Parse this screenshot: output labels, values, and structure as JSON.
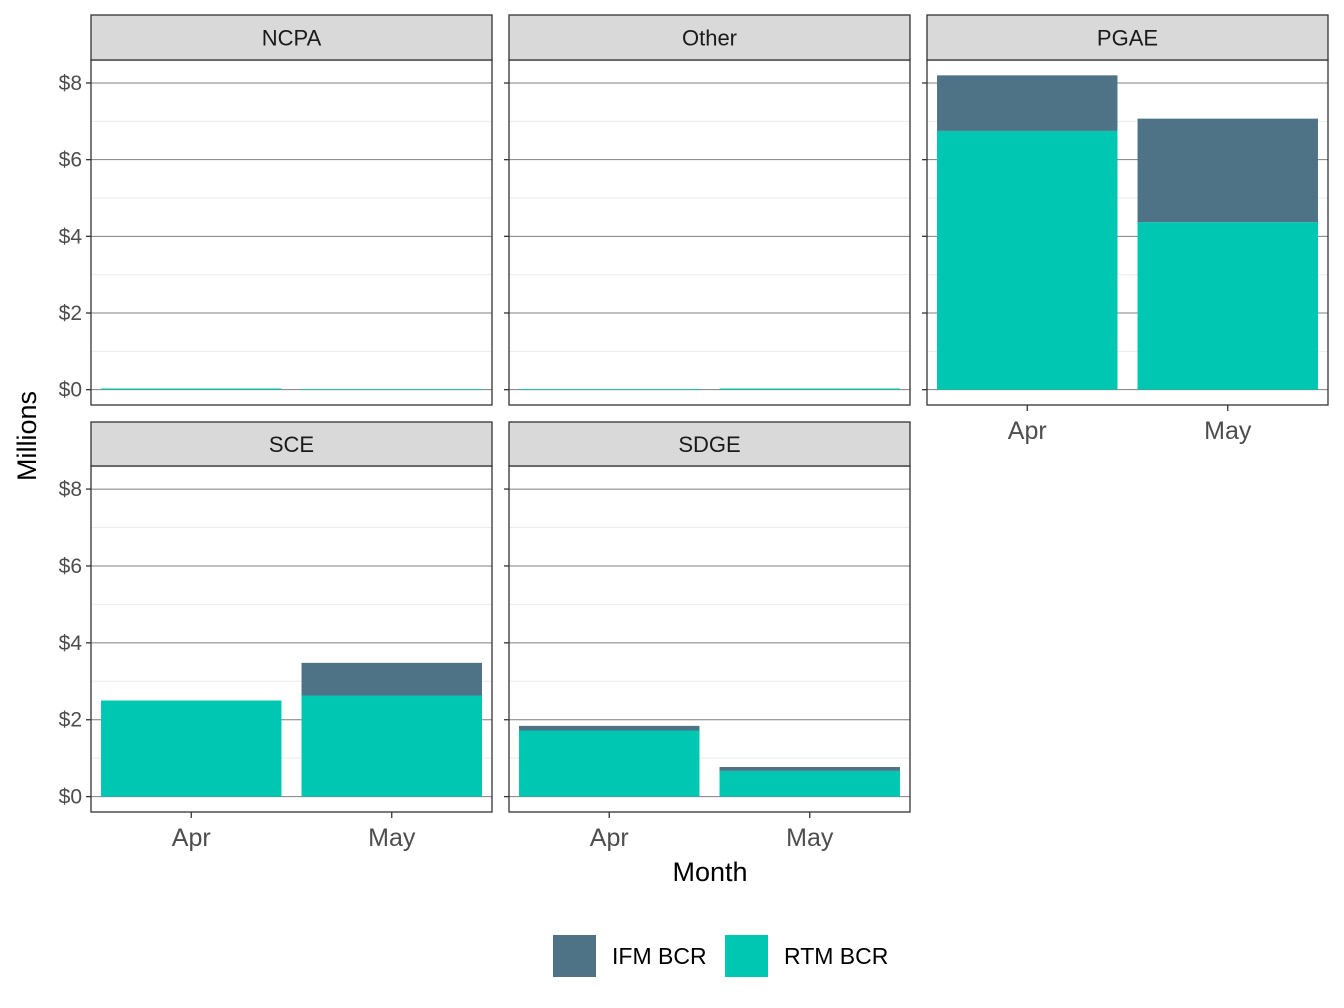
{
  "chart_data": {
    "type": "bar",
    "stacked": true,
    "faceted": true,
    "xlabel": "Month",
    "ylabel": "Millions",
    "ylim": [
      -0.4,
      8.6
    ],
    "y_ticks": [
      0,
      2,
      4,
      6,
      8
    ],
    "y_tick_labels": [
      "$0",
      "$2",
      "$4",
      "$6",
      "$8"
    ],
    "categories": [
      "Apr",
      "May"
    ],
    "legend_position": "bottom",
    "grid": true,
    "series": [
      {
        "name": "IFM BCR",
        "color": "#4E7386"
      },
      {
        "name": "RTM BCR",
        "color": "#00C7B2"
      }
    ],
    "panels": [
      {
        "name": "NCPA",
        "values": {
          "IFM BCR": [
            0.0,
            0.0
          ],
          "RTM BCR": [
            0.03,
            0.01
          ]
        }
      },
      {
        "name": "Other",
        "values": {
          "IFM BCR": [
            0.0,
            0.0
          ],
          "RTM BCR": [
            0.01,
            0.03
          ]
        }
      },
      {
        "name": "PGAE",
        "values": {
          "IFM BCR": [
            1.45,
            2.7
          ],
          "RTM BCR": [
            6.75,
            4.37
          ]
        }
      },
      {
        "name": "SCE",
        "values": {
          "IFM BCR": [
            0.0,
            0.85
          ],
          "RTM BCR": [
            2.5,
            2.63
          ]
        }
      },
      {
        "name": "SDGE",
        "values": {
          "IFM BCR": [
            0.12,
            0.1
          ],
          "RTM BCR": [
            1.72,
            0.67
          ]
        }
      }
    ]
  }
}
